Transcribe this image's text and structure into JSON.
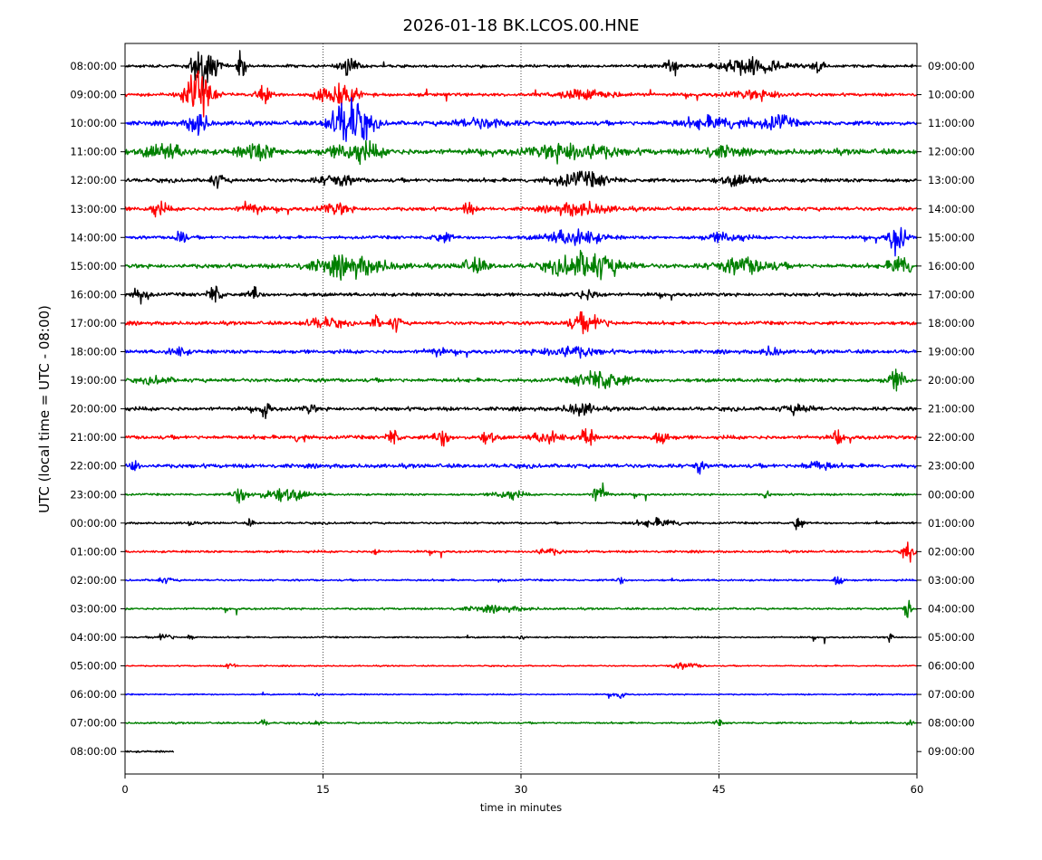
{
  "chart_data": {
    "type": "line",
    "title": "2026-01-18 BK.LCOS.00.HNE",
    "xlabel": "time in minutes",
    "ylabel": "UTC (local time = UTC - 08:00)",
    "xlim": [
      0,
      60
    ],
    "x_ticks": [
      "0",
      "15",
      "30",
      "45",
      "60"
    ],
    "x_tick_values": [
      0,
      15,
      30,
      45,
      60
    ],
    "grid": "vertical dotted lines at 15, 30, 45",
    "line_colors": [
      "#000000",
      "#ff0000",
      "#0000ff",
      "#008000"
    ],
    "rows_left_labels": [
      "08:00:00",
      "09:00:00",
      "10:00:00",
      "11:00:00",
      "12:00:00",
      "13:00:00",
      "14:00:00",
      "15:00:00",
      "16:00:00",
      "17:00:00",
      "18:00:00",
      "19:00:00",
      "20:00:00",
      "21:00:00",
      "22:00:00",
      "23:00:00",
      "00:00:00",
      "01:00:00",
      "02:00:00",
      "03:00:00",
      "04:00:00",
      "05:00:00",
      "06:00:00",
      "07:00:00",
      "08:00:00"
    ],
    "rows_right_labels": [
      "09:00:00",
      "10:00:00",
      "11:00:00",
      "12:00:00",
      "13:00:00",
      "14:00:00",
      "15:00:00",
      "16:00:00",
      "17:00:00",
      "18:00:00",
      "19:00:00",
      "20:00:00",
      "21:00:00",
      "22:00:00",
      "23:00:00",
      "00:00:00",
      "01:00:00",
      "02:00:00",
      "03:00:00",
      "04:00:00",
      "05:00:00",
      "06:00:00",
      "07:00:00",
      "08:00:00",
      "09:00:00"
    ],
    "last_row_end_minute": 3.7,
    "activity": [
      {
        "row": 0,
        "noise": 0.22,
        "events": [
          [
            5.5,
            0.6,
            2.5
          ],
          [
            6.2,
            1.2,
            3.5
          ],
          [
            8.8,
            0.5,
            2.0
          ],
          [
            17.0,
            1.0,
            1.6
          ],
          [
            41.5,
            0.8,
            1.2
          ],
          [
            47.5,
            3.5,
            1.4
          ],
          [
            52.5,
            0.6,
            1.5
          ]
        ]
      },
      {
        "row": 1,
        "noise": 0.25,
        "events": [
          [
            5.5,
            1.5,
            3.5
          ],
          [
            10.5,
            0.8,
            1.5
          ],
          [
            16.0,
            2.0,
            2.0
          ],
          [
            35.0,
            3.0,
            0.8
          ],
          [
            48.0,
            3.0,
            0.7
          ]
        ]
      },
      {
        "row": 2,
        "noise": 0.35,
        "events": [
          [
            5.5,
            1.0,
            2.0
          ],
          [
            17.0,
            2.0,
            4.0
          ],
          [
            27.0,
            3.0,
            0.7
          ],
          [
            45.0,
            4.0,
            0.9
          ],
          [
            49.5,
            1.5,
            1.2
          ]
        ]
      },
      {
        "row": 3,
        "noise": 0.45,
        "events": [
          [
            3.0,
            2.0,
            1.2
          ],
          [
            10.0,
            2.0,
            1.2
          ],
          [
            17.5,
            2.5,
            1.5
          ],
          [
            34.0,
            4.0,
            1.5
          ],
          [
            45.0,
            2.0,
            0.8
          ]
        ]
      },
      {
        "row": 4,
        "noise": 0.3,
        "events": [
          [
            7.0,
            0.8,
            1.0
          ],
          [
            16.0,
            2.0,
            0.8
          ],
          [
            34.5,
            3.0,
            1.2
          ],
          [
            46.5,
            2.0,
            0.8
          ]
        ]
      },
      {
        "row": 5,
        "noise": 0.3,
        "events": [
          [
            2.5,
            1.0,
            1.0
          ],
          [
            9.5,
            1.0,
            1.2
          ],
          [
            16.0,
            1.5,
            0.9
          ],
          [
            26.0,
            0.6,
            1.0
          ],
          [
            34.5,
            3.0,
            1.0
          ]
        ]
      },
      {
        "row": 6,
        "noise": 0.25,
        "events": [
          [
            4.2,
            0.5,
            2.0
          ],
          [
            24.0,
            1.0,
            0.8
          ],
          [
            34.0,
            3.0,
            1.3
          ],
          [
            45.5,
            2.0,
            0.8
          ],
          [
            58.5,
            0.9,
            2.5
          ]
        ]
      },
      {
        "row": 7,
        "noise": 0.35,
        "events": [
          [
            17.0,
            4.0,
            1.5
          ],
          [
            26.5,
            1.5,
            1.0
          ],
          [
            35.0,
            3.5,
            2.2
          ],
          [
            47.0,
            3.0,
            1.3
          ],
          [
            58.8,
            1.2,
            1.8
          ]
        ]
      },
      {
        "row": 8,
        "noise": 0.28,
        "events": [
          [
            1.2,
            0.8,
            1.3
          ],
          [
            6.8,
            0.7,
            1.6
          ],
          [
            9.8,
            0.5,
            1.3
          ],
          [
            35.0,
            1.5,
            0.7
          ]
        ]
      },
      {
        "row": 9,
        "noise": 0.28,
        "events": [
          [
            15.0,
            2.0,
            0.8
          ],
          [
            19.0,
            0.6,
            1.0
          ],
          [
            20.5,
            0.6,
            1.2
          ],
          [
            35.0,
            2.0,
            1.4
          ]
        ]
      },
      {
        "row": 10,
        "noise": 0.3,
        "events": [
          [
            4.0,
            1.0,
            0.7
          ],
          [
            23.5,
            1.0,
            0.6
          ],
          [
            33.5,
            3.0,
            0.9
          ],
          [
            49.0,
            1.0,
            0.7
          ]
        ]
      },
      {
        "row": 11,
        "noise": 0.3,
        "events": [
          [
            2.5,
            1.5,
            0.5
          ],
          [
            36.0,
            2.5,
            1.6
          ],
          [
            58.5,
            1.0,
            1.6
          ]
        ]
      },
      {
        "row": 12,
        "noise": 0.3,
        "events": [
          [
            10.6,
            0.5,
            1.8
          ],
          [
            14.0,
            0.6,
            0.8
          ],
          [
            34.5,
            1.5,
            1.0
          ],
          [
            51.0,
            1.5,
            0.7
          ]
        ]
      },
      {
        "row": 13,
        "noise": 0.3,
        "events": [
          [
            13.3,
            0.6,
            1.0
          ],
          [
            20.3,
            0.6,
            1.4
          ],
          [
            24.0,
            0.8,
            1.3
          ],
          [
            27.5,
            0.8,
            1.0
          ],
          [
            32.0,
            1.5,
            1.0
          ],
          [
            35.0,
            0.6,
            2.2
          ],
          [
            40.5,
            1.0,
            1.0
          ],
          [
            54.0,
            0.5,
            1.2
          ]
        ]
      },
      {
        "row": 14,
        "noise": 0.32,
        "events": [
          [
            0.6,
            0.6,
            1.1
          ],
          [
            43.5,
            0.4,
            1.2
          ],
          [
            52.5,
            1.5,
            0.7
          ]
        ]
      },
      {
        "row": 15,
        "noise": 0.16,
        "events": [
          [
            8.7,
            0.8,
            1.3
          ],
          [
            12.0,
            2.5,
            1.1
          ],
          [
            29.0,
            1.5,
            0.8
          ],
          [
            36.0,
            0.8,
            1.8
          ],
          [
            48.6,
            0.3,
            0.8
          ]
        ]
      },
      {
        "row": 16,
        "noise": 0.16,
        "events": [
          [
            5.0,
            0.3,
            0.7
          ],
          [
            9.5,
            0.3,
            0.7
          ],
          [
            40.5,
            2.5,
            0.6
          ],
          [
            51.0,
            0.4,
            2.0
          ]
        ]
      },
      {
        "row": 17,
        "noise": 0.18,
        "events": [
          [
            19.0,
            0.4,
            0.6
          ],
          [
            32.0,
            1.5,
            0.5
          ],
          [
            59.3,
            0.5,
            1.6
          ]
        ]
      },
      {
        "row": 18,
        "noise": 0.15,
        "events": [
          [
            3.0,
            1.0,
            0.4
          ],
          [
            28.5,
            0.3,
            0.5
          ],
          [
            37.5,
            0.4,
            0.6
          ],
          [
            54.0,
            0.5,
            1.0
          ]
        ]
      },
      {
        "row": 19,
        "noise": 0.16,
        "events": [
          [
            28.0,
            3.5,
            0.4
          ],
          [
            59.3,
            0.3,
            2.5
          ]
        ]
      },
      {
        "row": 20,
        "noise": 0.12,
        "events": [
          [
            3.0,
            0.8,
            0.7
          ],
          [
            5.0,
            0.4,
            0.5
          ],
          [
            30.0,
            0.3,
            0.6
          ],
          [
            58.0,
            0.5,
            0.6
          ]
        ]
      },
      {
        "row": 21,
        "noise": 0.1,
        "events": [
          [
            8.0,
            0.5,
            0.6
          ],
          [
            42.5,
            1.5,
            0.5
          ]
        ]
      },
      {
        "row": 22,
        "noise": 0.1,
        "events": [
          [
            14.5,
            0.3,
            0.4
          ],
          [
            37.5,
            0.5,
            0.8
          ]
        ]
      },
      {
        "row": 23,
        "noise": 0.14,
        "events": [
          [
            10.5,
            0.5,
            0.5
          ],
          [
            14.5,
            0.5,
            0.5
          ],
          [
            45.0,
            0.5,
            0.4
          ],
          [
            59.5,
            0.5,
            0.4
          ]
        ]
      },
      {
        "row": 24,
        "noise": 0.15,
        "events": []
      }
    ]
  }
}
